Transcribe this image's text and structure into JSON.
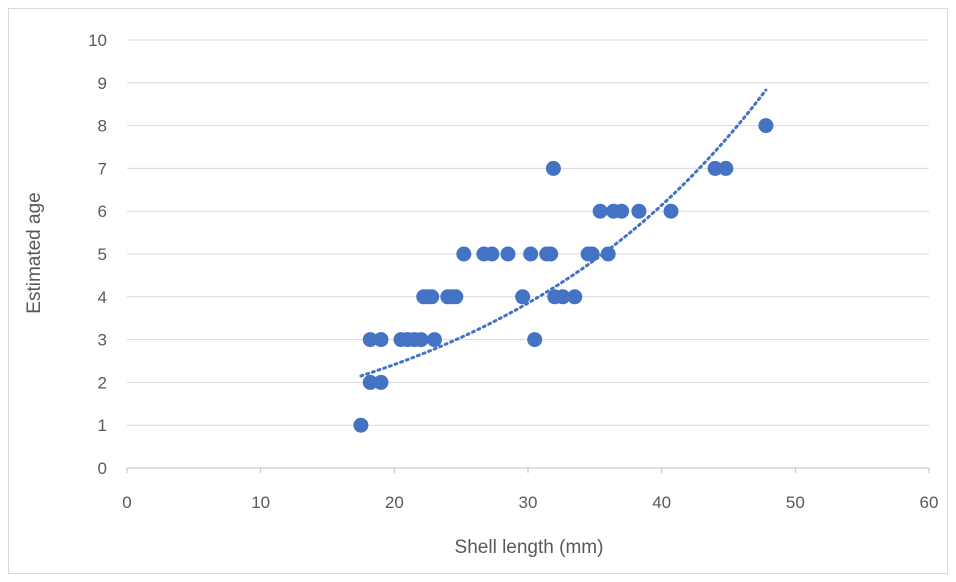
{
  "chart_data": {
    "type": "scatter",
    "title": "",
    "xlabel": "Shell length (mm)",
    "ylabel": "Estimated age",
    "xlim": [
      0,
      60
    ],
    "ylim": [
      0,
      10
    ],
    "x_ticks": [
      0,
      10,
      20,
      30,
      40,
      50,
      60
    ],
    "y_ticks": [
      0,
      1,
      2,
      3,
      4,
      5,
      6,
      7,
      8,
      9,
      10
    ],
    "grid": true,
    "legend": "none",
    "marker_color": "#4472C4",
    "series": [
      {
        "points": [
          [
            17.5,
            1
          ],
          [
            18.2,
            2
          ],
          [
            19.0,
            2
          ],
          [
            18.2,
            3
          ],
          [
            19.0,
            3
          ],
          [
            20.5,
            3
          ],
          [
            21.0,
            3
          ],
          [
            21.5,
            3
          ],
          [
            22.0,
            3
          ],
          [
            23.0,
            3
          ],
          [
            30.5,
            3
          ],
          [
            22.2,
            4
          ],
          [
            22.5,
            4
          ],
          [
            22.8,
            4
          ],
          [
            24.0,
            4
          ],
          [
            24.3,
            4
          ],
          [
            24.6,
            4
          ],
          [
            29.6,
            4
          ],
          [
            32.0,
            4
          ],
          [
            32.6,
            4
          ],
          [
            33.5,
            4
          ],
          [
            25.2,
            5
          ],
          [
            26.7,
            5
          ],
          [
            27.3,
            5
          ],
          [
            28.5,
            5
          ],
          [
            30.2,
            5
          ],
          [
            31.4,
            5
          ],
          [
            31.7,
            5
          ],
          [
            34.5,
            5
          ],
          [
            34.8,
            5
          ],
          [
            36.0,
            5
          ],
          [
            35.4,
            6
          ],
          [
            36.4,
            6
          ],
          [
            37.0,
            6
          ],
          [
            38.3,
            6
          ],
          [
            40.7,
            6
          ],
          [
            31.9,
            7
          ],
          [
            44.0,
            7
          ],
          [
            44.8,
            7
          ],
          [
            47.8,
            8
          ]
        ]
      }
    ],
    "trendline": {
      "type": "exponential",
      "a": 0.952,
      "b": 0.0466,
      "x_range": [
        17.5,
        47.8
      ]
    }
  }
}
